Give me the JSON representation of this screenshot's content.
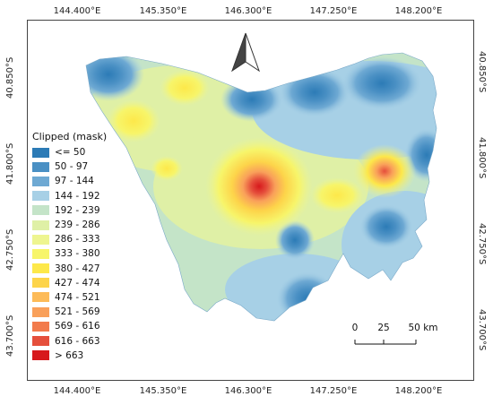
{
  "map": {
    "top_ticks": [
      "144.400°E",
      "145.350°E",
      "146.300°E",
      "147.250°E",
      "148.200°E"
    ],
    "bottom_ticks": [
      "144.400°E",
      "145.350°E",
      "146.300°E",
      "147.250°E",
      "148.200°E"
    ],
    "left_ticks": [
      "40.850°S",
      "41.800°S",
      "42.750°S",
      "43.700°S"
    ],
    "right_ticks": [
      "40.850°S",
      "41.800°S",
      "42.750°S",
      "43.700°S"
    ]
  },
  "legend": {
    "title": "Clipped (mask)",
    "items": [
      {
        "label": "<= 50",
        "color": "#2c7bb6"
      },
      {
        "label": "50 - 97",
        "color": "#4a90c4"
      },
      {
        "label": "97 - 144",
        "color": "#6ea9d3"
      },
      {
        "label": "144 - 192",
        "color": "#a7d0e6"
      },
      {
        "label": "192 - 239",
        "color": "#c4e4c8"
      },
      {
        "label": "239 - 286",
        "color": "#dff0a6"
      },
      {
        "label": "286 - 333",
        "color": "#eef590"
      },
      {
        "label": "333 - 380",
        "color": "#f7f56a"
      },
      {
        "label": "380 - 427",
        "color": "#fde84a"
      },
      {
        "label": "427 - 474",
        "color": "#fdd44a"
      },
      {
        "label": "474 - 521",
        "color": "#fdbb58"
      },
      {
        "label": "521 - 569",
        "color": "#f9a05a"
      },
      {
        "label": "569 - 616",
        "color": "#f27b4c"
      },
      {
        "label": "616 - 663",
        "color": "#e54f3c"
      },
      {
        "label": "> 663",
        "color": "#d7191c"
      }
    ]
  },
  "scalebar": {
    "labels": [
      "0",
      "25",
      "50 km"
    ]
  }
}
